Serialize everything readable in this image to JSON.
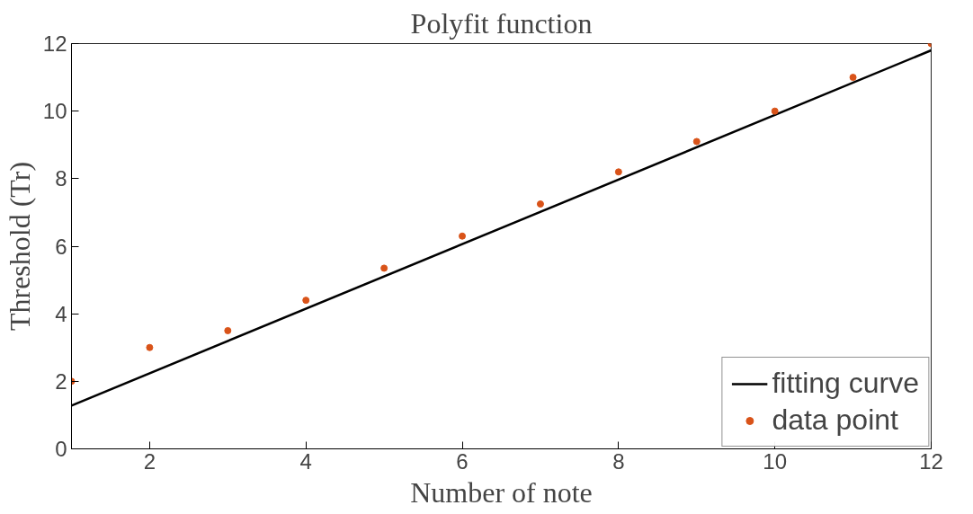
{
  "chart_data": {
    "type": "scatter",
    "title": "Polyfit function",
    "xlabel": "Number of note",
    "ylabel": "Threshold (Tr)",
    "xlim": [
      1,
      12
    ],
    "ylim": [
      0,
      12
    ],
    "xticks": [
      2,
      4,
      6,
      8,
      10,
      12
    ],
    "yticks": [
      0,
      2,
      4,
      6,
      8,
      10,
      12
    ],
    "grid": false,
    "legend": "bottom right",
    "series": [
      {
        "name": "fitting curve",
        "type": "line",
        "color": "#000000",
        "line_style": "solid",
        "x": [
          1,
          12
        ],
        "values": [
          1.28,
          11.8
        ]
      },
      {
        "name": "data point",
        "marker": "circle",
        "color": "#d95319",
        "x": [
          1,
          2,
          3,
          4,
          5,
          6,
          7,
          8,
          9,
          10,
          11,
          12
        ],
        "values": [
          2,
          3,
          3.5,
          4.4,
          5.35,
          6.3,
          7.25,
          8.2,
          9.1,
          10,
          11,
          12
        ]
      }
    ]
  }
}
